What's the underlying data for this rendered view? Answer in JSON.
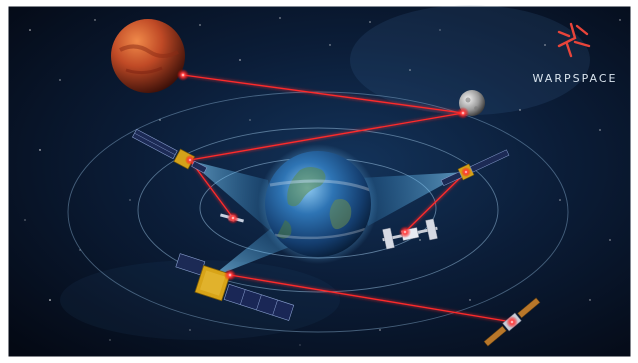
{
  "brand": {
    "name": "WARPSPACE",
    "accent": "#e8443a",
    "text_color": "#d9e4ee"
  },
  "palette": {
    "space_dark": "#050b18",
    "space_mid": "#0f2545",
    "laser": "#ff2a2a",
    "beam": "#5fc8ff",
    "orbit": "#8fb6d6",
    "mars": "#c84a2a",
    "earth": "#2d6ea8"
  }
}
